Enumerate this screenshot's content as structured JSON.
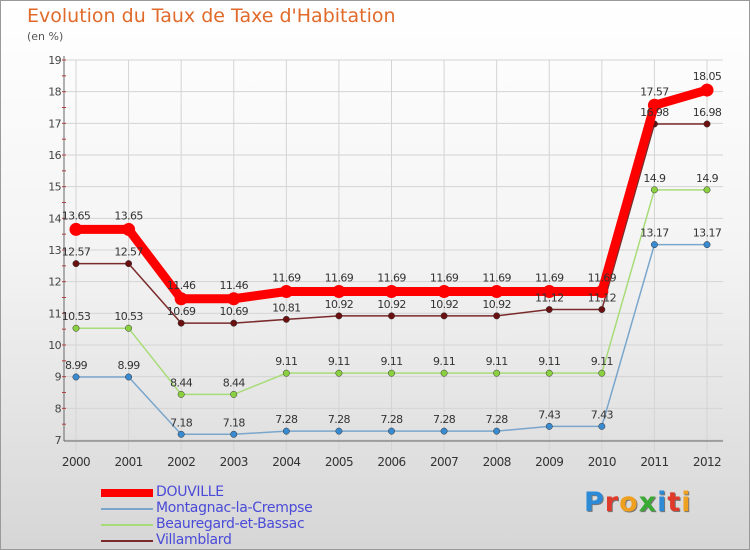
{
  "title": "Evolution du Taux de Taxe d'Habitation",
  "unit": "(en %)",
  "logo": {
    "text": "Proxiti",
    "colors": [
      "#2c8ad6",
      "#e03a2a",
      "#f0a020",
      "#3aaa35",
      "#2c8ad6",
      "#e03a2a",
      "#f0a020"
    ]
  },
  "chart_data": {
    "type": "line",
    "title": "Evolution du Taux de Taxe d'Habitation",
    "ylabel": "(en %)",
    "x": [
      "2000",
      "2001",
      "2002",
      "2003",
      "2004",
      "2005",
      "2006",
      "2007",
      "2008",
      "2009",
      "2010",
      "2011",
      "2012"
    ],
    "ylim": [
      7,
      19
    ],
    "yticks": [
      "7",
      "8",
      "9",
      "10",
      "11",
      "12",
      "13",
      "14",
      "15",
      "16",
      "17",
      "18",
      "19"
    ],
    "grid": true,
    "legend_position": "bottom-left",
    "series": [
      {
        "name": "DOUVILLE",
        "color": "#ff0000",
        "thick": true,
        "values": [
          13.65,
          13.65,
          11.46,
          11.46,
          11.69,
          11.69,
          11.69,
          11.69,
          11.69,
          11.69,
          11.69,
          17.57,
          18.05
        ],
        "labels": [
          "13.65",
          "13.65",
          "11.46",
          "11.46",
          "11.69",
          "11.69",
          "11.69",
          "11.69",
          "11.69",
          "11.69",
          "11.69",
          "17.57",
          "18.05"
        ]
      },
      {
        "name": "Montagnac-la-Crempse",
        "color": "#7aa6cc",
        "point": "#3a8ad0",
        "values": [
          8.99,
          8.99,
          7.18,
          7.18,
          7.28,
          7.28,
          7.28,
          7.28,
          7.28,
          7.43,
          7.43,
          13.17,
          13.17
        ],
        "labels": [
          "8.99",
          "8.99",
          "7.18",
          "7.18",
          "7.28",
          "7.28",
          "7.28",
          "7.28",
          "7.28",
          "7.43",
          "7.43",
          "13.17",
          "13.17"
        ]
      },
      {
        "name": "Beauregard-et-Bassac",
        "color": "#a8dc78",
        "point": "#8ad040",
        "values": [
          10.53,
          10.53,
          8.44,
          8.44,
          9.11,
          9.11,
          9.11,
          9.11,
          9.11,
          9.11,
          9.11,
          14.9,
          14.9
        ],
        "labels": [
          "10.53",
          "10.53",
          "8.44",
          "8.44",
          "9.11",
          "9.11",
          "9.11",
          "9.11",
          "9.11",
          "9.11",
          "9.11",
          "14.9",
          "14.9"
        ]
      },
      {
        "name": "Villamblard",
        "color": "#7a2a2a",
        "point": "#6a1010",
        "values": [
          12.57,
          12.57,
          10.69,
          10.69,
          10.81,
          10.92,
          10.92,
          10.92,
          10.92,
          11.12,
          11.12,
          16.98,
          16.98
        ],
        "labels": [
          "12.57",
          "12.57",
          "10.69",
          "10.69",
          "10.81",
          "10.92",
          "10.92",
          "10.92",
          "10.92",
          "11.12",
          "11.12",
          "16.98",
          "16.98"
        ]
      }
    ]
  }
}
